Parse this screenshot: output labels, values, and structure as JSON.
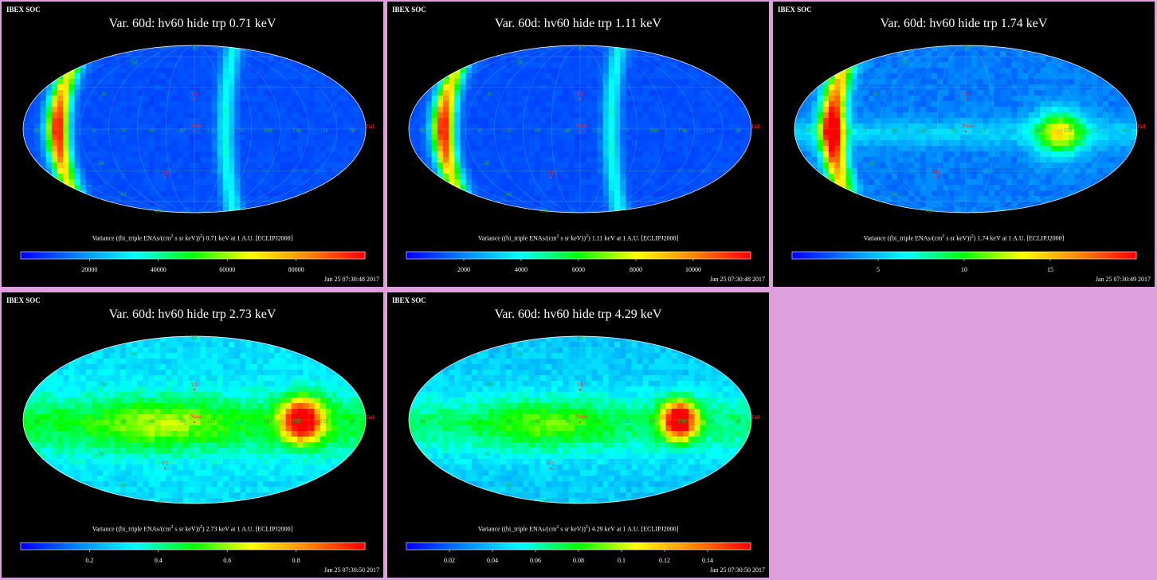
{
  "colors": {
    "background": "#dda0dd",
    "panel_background": "#000000",
    "grid_green": "#2fb03a",
    "marker_red": "#ff3030",
    "colorscale": [
      "#0000ff",
      "#0088ff",
      "#00ffff",
      "#00ff00",
      "#ffff00",
      "#ff8800",
      "#ff0000"
    ]
  },
  "lat_labels": [
    "60",
    "30",
    "-30",
    "-60"
  ],
  "lon_labels": [
    "60",
    "0",
    "-30",
    "-60",
    "-90",
    "-120",
    "-150",
    "180",
    "150",
    "120",
    "90"
  ],
  "markers": {
    "v1": "V1",
    "v2": "V2",
    "nose": "Nose",
    "tail": "Tail"
  },
  "panels": [
    {
      "corner_label": "IBEX SOC",
      "title": "Var. 60d: hv60 hide trp 0.71 keV",
      "caption_pre": "Variance ((bi_triple ENAs/(cm",
      "caption_sup": "2",
      "caption_post": " s sr keV))",
      "caption_sup2": "2",
      "caption_end": ") 0.71 keV at 1 A.U. [ECLIPJ2000]",
      "colorbar_ticks": [
        "20000",
        "40000",
        "60000",
        "80000"
      ],
      "timestamp": "Jan 25 07:30:48 2017",
      "pattern": "ribbon"
    },
    {
      "corner_label": "IBEX SOC",
      "title": "Var. 60d: hv60 hide trp 1.11 keV",
      "caption_pre": "Variance ((bi_triple ENAs/(cm",
      "caption_sup": "2",
      "caption_post": " s sr keV))",
      "caption_sup2": "2",
      "caption_end": ") 1.11 keV at 1 A.U. [ECLIPJ2000]",
      "colorbar_ticks": [
        "2000",
        "4000",
        "6000",
        "8000",
        "10000"
      ],
      "timestamp": "Jan 25 07:30:48 2017",
      "pattern": "ribbon"
    },
    {
      "corner_label": "IBEX SOC",
      "title": "Var. 60d: hv60 hide trp 1.74 keV",
      "caption_pre": "Variance ((bi_triple ENAs/(cm",
      "caption_sup": "2",
      "caption_post": " s sr keV))",
      "caption_sup2": "2",
      "caption_end": ") 1.74 keV at 1 A.U. [ECLIPJ2000]",
      "colorbar_ticks": [
        "5",
        "10",
        "15"
      ],
      "timestamp": "Jan 25 07:30:49 2017",
      "pattern": "mixed"
    },
    {
      "corner_label": "IBEX SOC",
      "title": "Var. 60d: hv60 hide trp 2.73 keV",
      "caption_pre": "Variance ((bi_triple ENAs/(cm",
      "caption_sup": "2",
      "caption_post": " s sr keV))",
      "caption_sup2": "2",
      "caption_end": ") 2.73 keV at 1 A.U. [ECLIPJ2000]",
      "colorbar_ticks": [
        "0.2",
        "0.4",
        "0.6",
        "0.8"
      ],
      "timestamp": "Jan 25 07:30:50 2017",
      "pattern": "tail"
    },
    {
      "corner_label": "IBEX SOC",
      "title": "Var. 60d: hv60 hide trp 4.29 keV",
      "caption_pre": "Variance ((bi_triple ENAs/(cm",
      "caption_sup": "2",
      "caption_post": " s sr keV))",
      "caption_sup2": "2",
      "caption_end": ") 4.29 keV at 1 A.U. [ECLIPJ2000]",
      "colorbar_ticks": [
        "0.02",
        "0.04",
        "0.06",
        "0.08",
        "0.1",
        "0.12",
        "0.14"
      ],
      "timestamp": "Jan 25 07:30:50 2017",
      "pattern": "tail2"
    }
  ]
}
